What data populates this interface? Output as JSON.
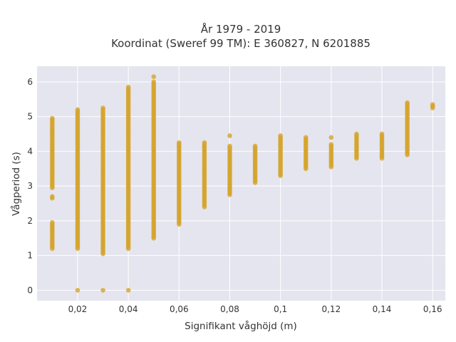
{
  "chart_data": {
    "type": "scatter",
    "title_line1": "År 1979 - 2019",
    "title_line2": "Koordinat (Sweref 99 TM): E 360827, N 6201885",
    "xlabel": "Signifikant våghöjd (m)",
    "ylabel": "Vågperiod (s)",
    "xlim": [
      0.004,
      0.165
    ],
    "ylim": [
      -0.3,
      6.45
    ],
    "x_ticks": [
      0.02,
      0.04,
      0.06,
      0.08,
      0.1,
      0.12,
      0.14,
      0.16
    ],
    "x_tick_labels": [
      "0,02",
      "0,04",
      "0,06",
      "0,08",
      "0,1",
      "0,12",
      "0,14",
      "0,16"
    ],
    "y_ticks": [
      0,
      1,
      2,
      3,
      4,
      5,
      6
    ],
    "y_tick_labels": [
      "0",
      "1",
      "2",
      "3",
      "4",
      "5",
      "6"
    ],
    "grid": true,
    "marker_color": "#d4a42a",
    "background_color": "#e5e5ef",
    "points_summary": [
      {
        "x": 0.01,
        "y_ranges": [
          [
            1.2,
            1.95
          ],
          [
            2.65,
            2.7
          ],
          [
            2.95,
            4.95
          ]
        ]
      },
      {
        "x": 0.02,
        "y_ranges": [
          [
            1.2,
            5.2
          ]
        ],
        "y_isolated": [
          0
        ]
      },
      {
        "x": 0.03,
        "y_ranges": [
          [
            1.05,
            5.25
          ]
        ],
        "y_isolated": [
          0
        ]
      },
      {
        "x": 0.04,
        "y_ranges": [
          [
            1.2,
            5.85
          ]
        ],
        "y_isolated": [
          0
        ]
      },
      {
        "x": 0.05,
        "y_ranges": [
          [
            1.5,
            6.0
          ]
        ],
        "y_isolated": [
          6.15
        ]
      },
      {
        "x": 0.06,
        "y_ranges": [
          [
            1.9,
            4.25
          ]
        ]
      },
      {
        "x": 0.07,
        "y_ranges": [
          [
            2.4,
            4.25
          ]
        ]
      },
      {
        "x": 0.08,
        "y_ranges": [
          [
            2.75,
            4.15
          ]
        ],
        "y_isolated": [
          4.45
        ]
      },
      {
        "x": 0.09,
        "y_ranges": [
          [
            3.1,
            4.15
          ]
        ]
      },
      {
        "x": 0.1,
        "y_ranges": [
          [
            3.3,
            4.45
          ]
        ]
      },
      {
        "x": 0.11,
        "y_ranges": [
          [
            3.5,
            4.4
          ]
        ]
      },
      {
        "x": 0.12,
        "y_ranges": [
          [
            3.55,
            4.2
          ]
        ],
        "y_isolated": [
          4.4
        ]
      },
      {
        "x": 0.13,
        "y_ranges": [
          [
            3.8,
            4.5
          ]
        ]
      },
      {
        "x": 0.14,
        "y_ranges": [
          [
            3.8,
            4.5
          ]
        ]
      },
      {
        "x": 0.15,
        "y_ranges": [
          [
            3.9,
            5.4
          ]
        ]
      },
      {
        "x": 0.16,
        "y_ranges": [
          [
            5.25,
            5.35
          ]
        ]
      }
    ]
  }
}
